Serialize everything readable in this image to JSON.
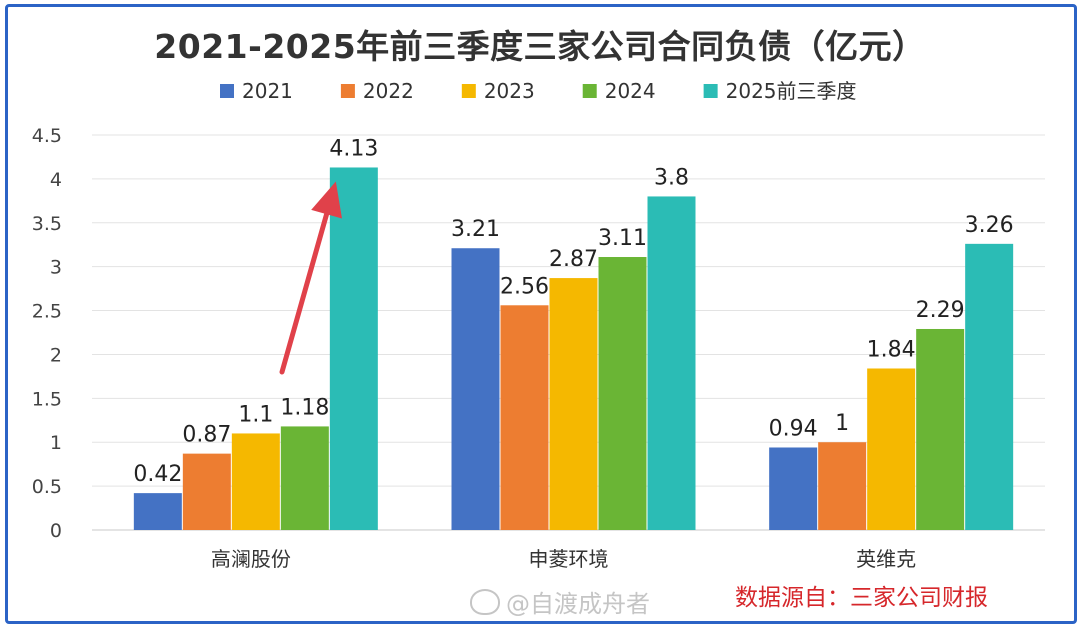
{
  "chart_data": {
    "type": "bar",
    "title": "2021-2025年前三季度三家公司合同负债（亿元）",
    "categories": [
      "高澜股份",
      "申菱环境",
      "英维克"
    ],
    "series": [
      {
        "name": "2021",
        "color": "#4472c4",
        "values": [
          0.42,
          3.21,
          0.94
        ]
      },
      {
        "name": "2022",
        "color": "#ed7d31",
        "values": [
          0.87,
          2.56,
          1
        ]
      },
      {
        "name": "2023",
        "color": "#f5b800",
        "values": [
          1.1,
          2.87,
          1.84
        ]
      },
      {
        "name": "2024",
        "color": "#6ab535",
        "values": [
          1.18,
          3.11,
          2.29
        ]
      },
      {
        "name": "2025前三季度",
        "color": "#2bbcb5",
        "values": [
          4.13,
          3.8,
          3.26
        ]
      }
    ],
    "yticks": [
      "0",
      "0.5",
      "1",
      "1.5",
      "2",
      "2.5",
      "3",
      "3.5",
      "4",
      "4.5"
    ],
    "ylim": [
      0,
      4.5
    ],
    "grid": true,
    "legend_position": "top",
    "annotation": "arrow pointing to 4.13"
  },
  "source_text": "数据源自：三家公司财报",
  "watermark_text": "@自渡成舟者",
  "frame_color": "#2b63c6",
  "arrow_color": "#e0414a"
}
